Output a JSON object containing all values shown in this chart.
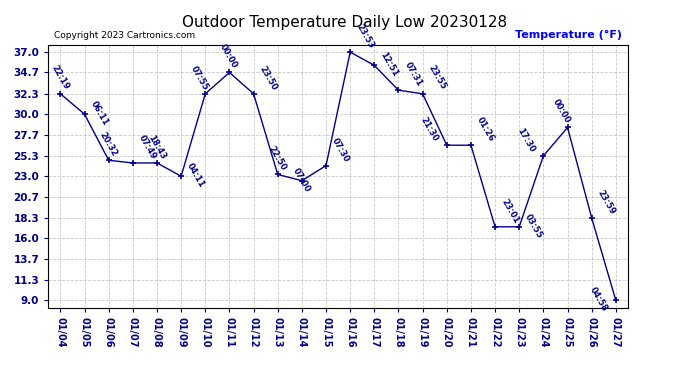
{
  "title": "Outdoor Temperature Daily Low 20230128",
  "ylabel": "Temperature (°F)",
  "copyright": "Copyright 2023 Cartronics.com",
  "background_color": "#ffffff",
  "line_color": "#00008B",
  "grid_color": "#bbbbbb",
  "yticks": [
    9.0,
    11.3,
    13.7,
    16.0,
    18.3,
    20.7,
    23.0,
    25.3,
    27.7,
    30.0,
    32.3,
    34.7,
    37.0
  ],
  "dates": [
    "01/04",
    "01/05",
    "01/06",
    "01/07",
    "01/08",
    "01/09",
    "01/10",
    "01/11",
    "01/12",
    "01/13",
    "01/14",
    "01/15",
    "01/16",
    "01/17",
    "01/18",
    "01/19",
    "01/20",
    "01/21",
    "01/22",
    "01/23",
    "01/24",
    "01/25",
    "01/26",
    "01/27"
  ],
  "values": [
    32.3,
    30.0,
    24.8,
    24.5,
    24.5,
    23.0,
    32.3,
    34.7,
    32.3,
    23.2,
    22.5,
    24.2,
    37.0,
    35.5,
    32.7,
    32.3,
    26.5,
    26.5,
    17.3,
    17.3,
    25.3,
    28.5,
    18.3,
    9.0
  ],
  "labels": [
    "22:19",
    "06:11",
    "20:32",
    "07:49",
    "18:43",
    "04:11",
    "07:55",
    "00:00",
    "23:50",
    "22:50",
    "07:00",
    "07:30",
    "23:53",
    "12:51",
    "07:31",
    "23:55",
    "21:30",
    "01:26",
    "23:01",
    "03:55",
    "17:30",
    "00:00",
    "23:59",
    "04:58"
  ],
  "label_offsets_x": [
    -8,
    3,
    -8,
    3,
    -8,
    3,
    -12,
    -8,
    3,
    -8,
    -8,
    3,
    3,
    3,
    3,
    3,
    -20,
    3,
    3,
    3,
    -20,
    -12,
    3,
    -20
  ],
  "label_offsets_y": [
    3,
    -8,
    3,
    3,
    3,
    -8,
    3,
    3,
    3,
    3,
    -8,
    3,
    3,
    -8,
    3,
    3,
    3,
    3,
    3,
    -8,
    3,
    3,
    3,
    -8
  ]
}
